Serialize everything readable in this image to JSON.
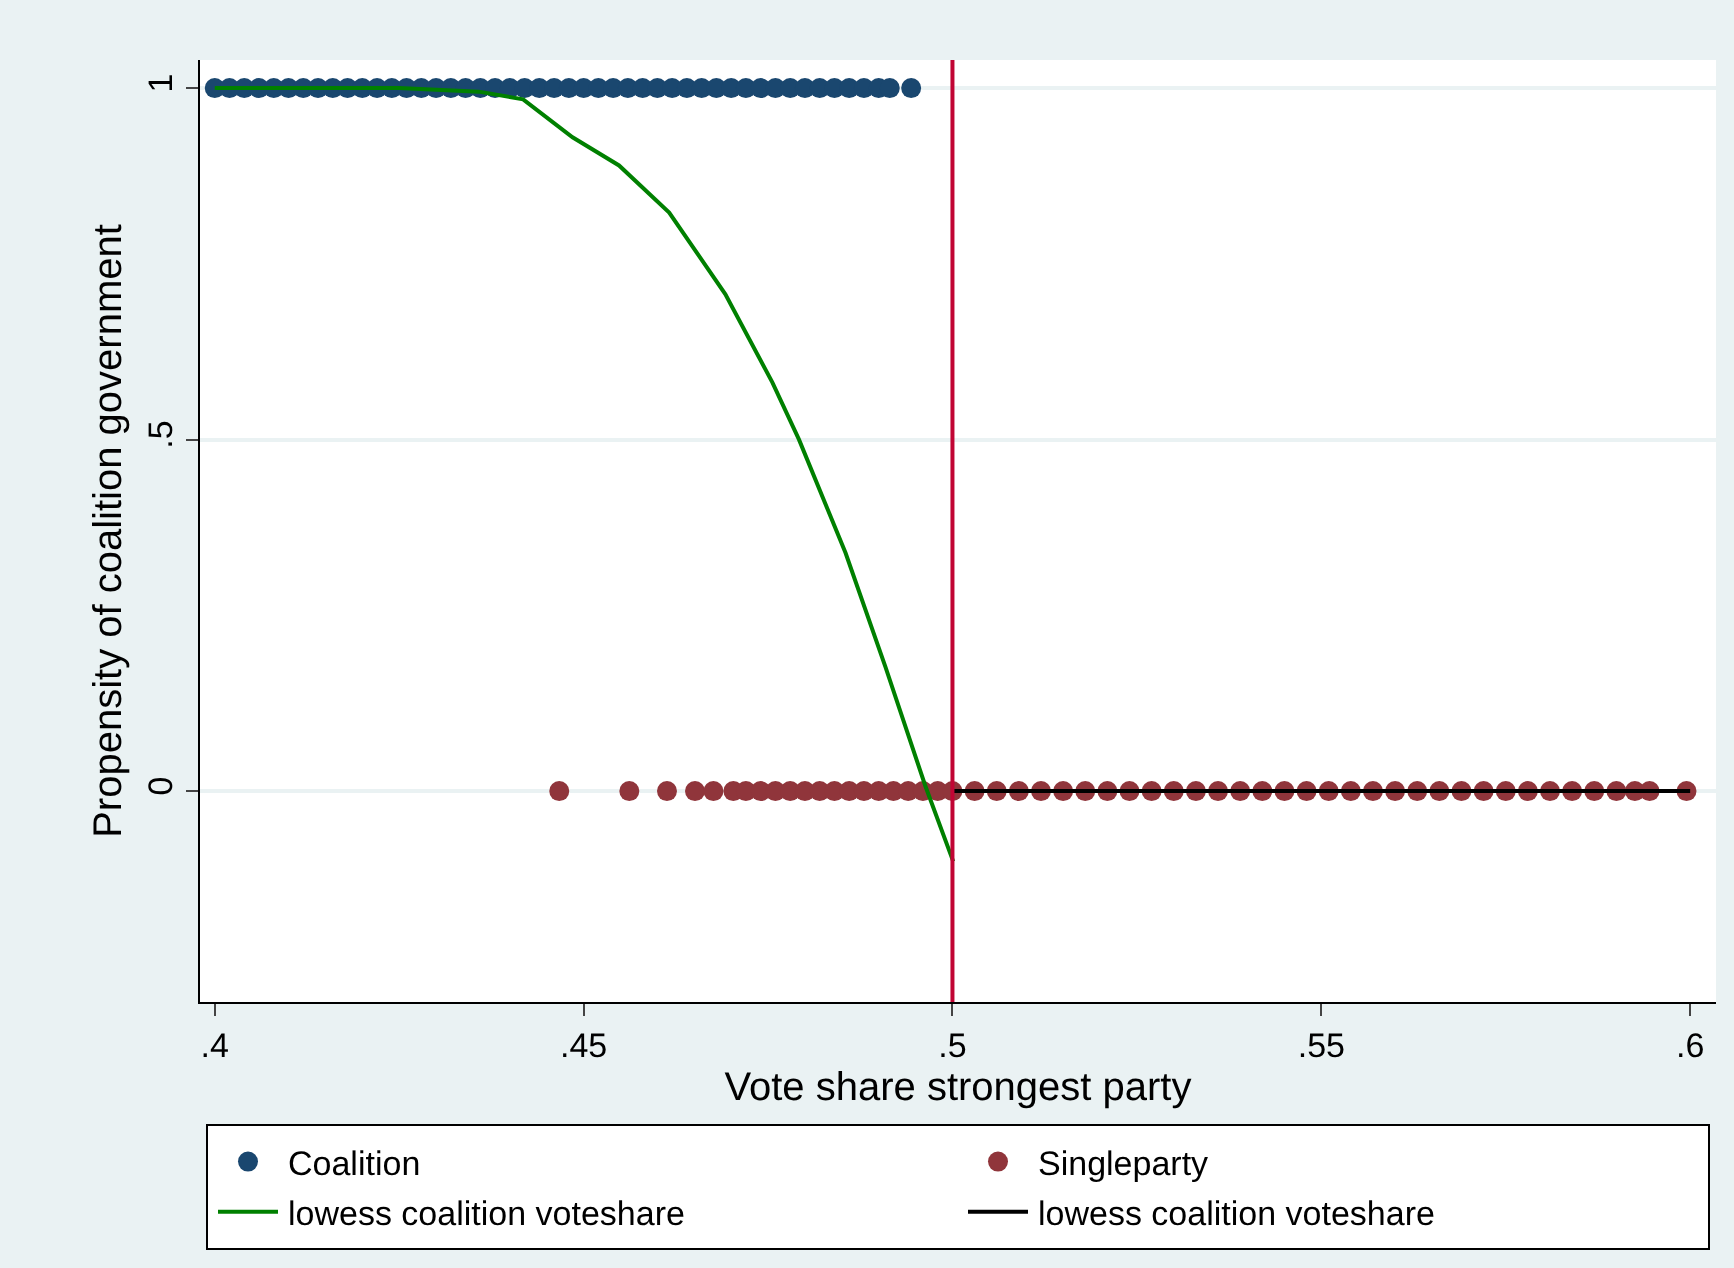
{
  "chart_data": {
    "type": "scatter",
    "xlabel": "Vote share strongest party",
    "ylabel": "Propensity of coalition government",
    "xlim": [
      0.398,
      0.6035
    ],
    "ylim": [
      -0.3,
      1.04
    ],
    "xticks": [
      {
        "value": 0.4,
        "label": ".4"
      },
      {
        "value": 0.45,
        "label": ".45"
      },
      {
        "value": 0.5,
        "label": ".5"
      },
      {
        "value": 0.55,
        "label": ".55"
      },
      {
        "value": 0.6,
        "label": ".6"
      }
    ],
    "yticks": [
      0,
      {
        "value": 0.5,
        "label": ".5"
      },
      1
    ],
    "grid": "y",
    "legend": "bottom",
    "series": [
      {
        "name": "Coalition",
        "marker": "circle",
        "color": "#1a476f",
        "x": [
          0.4,
          0.402,
          0.404,
          0.406,
          0.408,
          0.41,
          0.412,
          0.414,
          0.416,
          0.418,
          0.42,
          0.422,
          0.424,
          0.426,
          0.428,
          0.43,
          0.432,
          0.434,
          0.436,
          0.438,
          0.44,
          0.442,
          0.444,
          0.446,
          0.448,
          0.45,
          0.452,
          0.454,
          0.456,
          0.458,
          0.46,
          0.462,
          0.464,
          0.466,
          0.468,
          0.47,
          0.472,
          0.474,
          0.476,
          0.478,
          0.48,
          0.482,
          0.484,
          0.486,
          0.488,
          0.49,
          0.4915,
          0.4944
        ],
        "values": [
          1,
          1,
          1,
          1,
          1,
          1,
          1,
          1,
          1,
          1,
          1,
          1,
          1,
          1,
          1,
          1,
          1,
          1,
          1,
          1,
          1,
          1,
          1,
          1,
          1,
          1,
          1,
          1,
          1,
          1,
          1,
          1,
          1,
          1,
          1,
          1,
          1,
          1,
          1,
          1,
          1,
          1,
          1,
          1,
          1,
          1,
          1,
          1
        ]
      },
      {
        "name": "Singleparty",
        "marker": "circle",
        "color": "#90353b",
        "x": [
          0.4467,
          0.4562,
          0.4613,
          0.4651,
          0.4676,
          0.4703,
          0.472,
          0.474,
          0.476,
          0.478,
          0.48,
          0.482,
          0.484,
          0.486,
          0.488,
          0.49,
          0.492,
          0.494,
          0.496,
          0.498,
          0.5,
          0.503,
          0.506,
          0.509,
          0.512,
          0.515,
          0.518,
          0.521,
          0.524,
          0.527,
          0.53,
          0.533,
          0.536,
          0.539,
          0.542,
          0.545,
          0.548,
          0.551,
          0.554,
          0.557,
          0.56,
          0.563,
          0.566,
          0.569,
          0.572,
          0.575,
          0.578,
          0.581,
          0.584,
          0.587,
          0.59,
          0.5925,
          0.5945,
          0.5995
        ],
        "values": [
          0,
          0,
          0,
          0,
          0,
          0,
          0,
          0,
          0,
          0,
          0,
          0,
          0,
          0,
          0,
          0,
          0,
          0,
          0,
          0,
          0,
          0,
          0,
          0,
          0,
          0,
          0,
          0,
          0,
          0,
          0,
          0,
          0,
          0,
          0,
          0,
          0,
          0,
          0,
          0,
          0,
          0,
          0,
          0,
          0,
          0,
          0,
          0,
          0,
          0,
          0,
          0,
          0,
          0
        ]
      },
      {
        "name": "lowess coalition voteshare",
        "type": "line",
        "color": "#008000",
        "x": [
          0.4,
          0.425,
          0.4358,
          0.4418,
          0.4485,
          0.4548,
          0.4616,
          0.4692,
          0.4756,
          0.4792,
          0.4855,
          0.4909,
          0.4963,
          0.5001
        ],
        "values": [
          1.0,
          1.0,
          0.995,
          0.984,
          0.93,
          0.89,
          0.823,
          0.707,
          0.581,
          0.5,
          0.339,
          0.177,
          0.008,
          -0.1
        ]
      },
      {
        "name": "lowess coalition voteshare",
        "type": "line",
        "color": "#000000",
        "x": [
          0.5,
          0.6
        ],
        "values": [
          0,
          0
        ]
      }
    ],
    "ref_lines": [
      {
        "axis": "x",
        "value": 0.5,
        "color": "#c10534"
      }
    ]
  }
}
